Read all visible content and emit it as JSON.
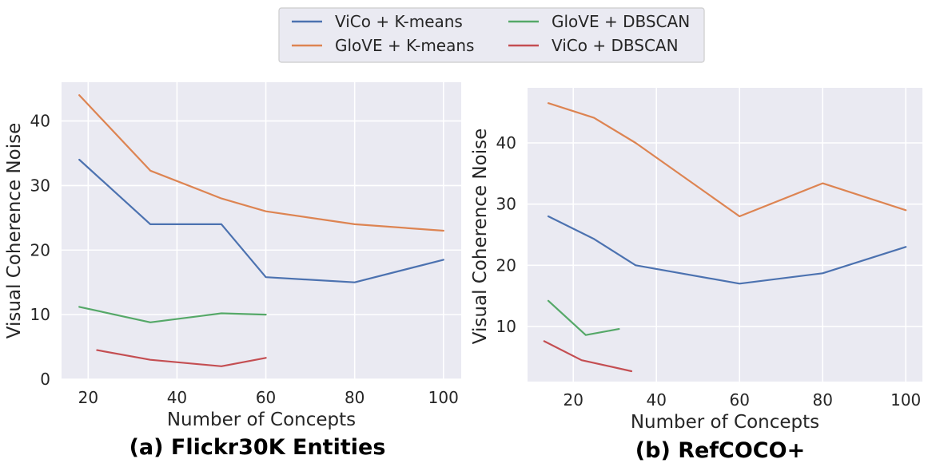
{
  "legend": [
    {
      "name": "ViCo + K-means",
      "color": "#4c72b0"
    },
    {
      "name": "GloVE + K-means",
      "color": "#dd8452"
    },
    {
      "name": "GloVE + DBSCAN",
      "color": "#55a868"
    },
    {
      "name": "ViCo + DBSCAN",
      "color": "#c44e52"
    }
  ],
  "chart_data": [
    {
      "type": "line",
      "caption": "(a) Flickr30K Entities",
      "xlabel": "Number of Concepts",
      "ylabel": "Visual Coherence Noise",
      "xlim": [
        14,
        104
      ],
      "ylim": [
        0,
        46
      ],
      "xticks": [
        20,
        40,
        60,
        80,
        100
      ],
      "yticks": [
        0,
        10,
        20,
        30,
        40
      ],
      "grid": true,
      "series": [
        {
          "name": "ViCo + K-means",
          "color": "#4c72b0",
          "x": [
            18,
            34,
            50,
            60,
            80,
            100
          ],
          "y": [
            34,
            24,
            24,
            15.8,
            15,
            18.5
          ]
        },
        {
          "name": "GloVE + K-means",
          "color": "#dd8452",
          "x": [
            18,
            34,
            50,
            60,
            80,
            100
          ],
          "y": [
            44,
            32.3,
            28,
            26,
            24,
            23
          ]
        },
        {
          "name": "GloVE + DBSCAN",
          "color": "#55a868",
          "x": [
            18,
            34,
            50,
            60
          ],
          "y": [
            11.2,
            8.8,
            10.2,
            10
          ]
        },
        {
          "name": "ViCo + DBSCAN",
          "color": "#c44e52",
          "x": [
            22,
            34,
            50,
            60
          ],
          "y": [
            4.5,
            3,
            2,
            3.3
          ]
        }
      ]
    },
    {
      "type": "line",
      "caption": "(b) RefCOCO+",
      "xlabel": "Number of Concepts",
      "ylabel": "Visual Coherence Noise",
      "xlim": [
        9,
        104
      ],
      "ylim": [
        1,
        49
      ],
      "xticks": [
        20,
        40,
        60,
        80,
        100
      ],
      "yticks": [
        10,
        20,
        30,
        40
      ],
      "grid": true,
      "series": [
        {
          "name": "ViCo + K-means",
          "color": "#4c72b0",
          "x": [
            14,
            25,
            35,
            60,
            80,
            100
          ],
          "y": [
            28,
            24.3,
            20,
            17,
            18.7,
            23
          ]
        },
        {
          "name": "GloVE + K-means",
          "color": "#dd8452",
          "x": [
            14,
            25,
            35,
            60,
            80,
            100
          ],
          "y": [
            46.5,
            44.1,
            40,
            28,
            33.4,
            29
          ]
        },
        {
          "name": "GloVE + DBSCAN",
          "color": "#55a868",
          "x": [
            14,
            23,
            31
          ],
          "y": [
            14.2,
            8.6,
            9.6
          ]
        },
        {
          "name": "ViCo + DBSCAN",
          "color": "#c44e52",
          "x": [
            13,
            22,
            34
          ],
          "y": [
            7.6,
            4.5,
            2.7
          ]
        }
      ]
    }
  ]
}
